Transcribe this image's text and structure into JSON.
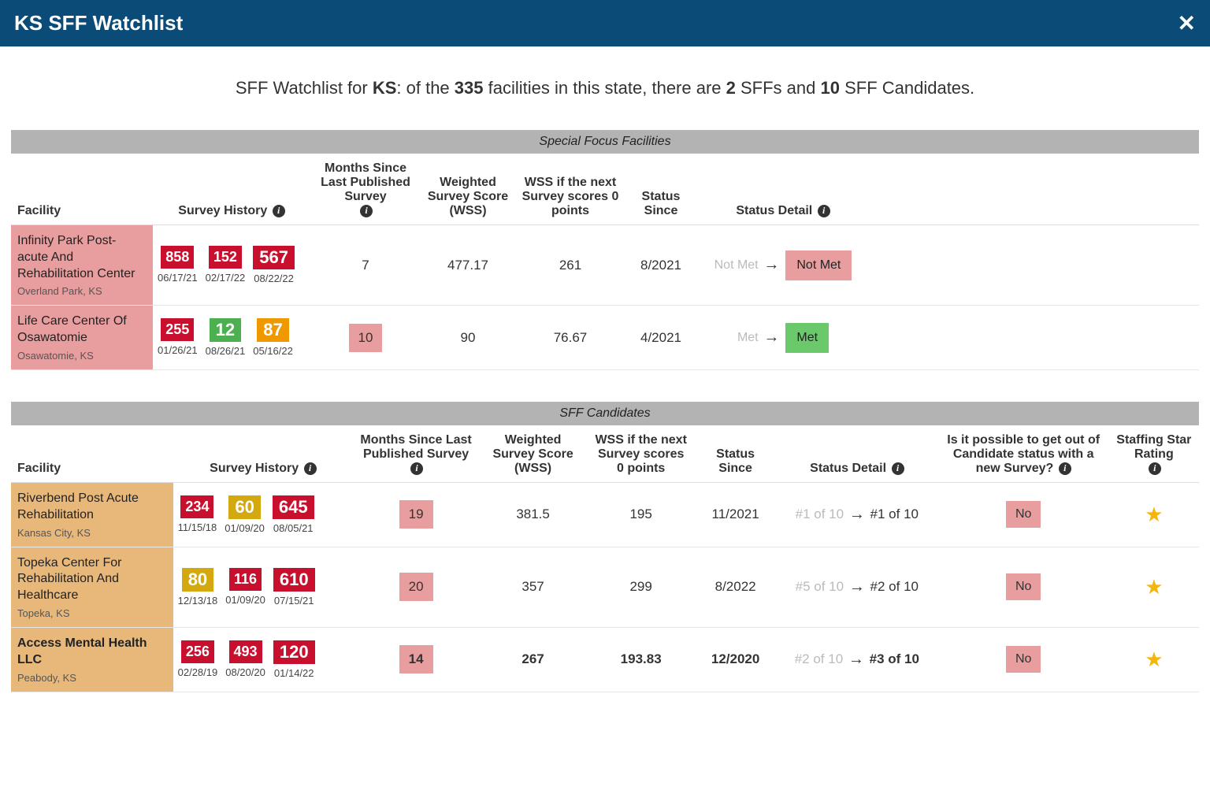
{
  "header": {
    "title": "KS SFF Watchlist"
  },
  "summary": {
    "prefix": "SFF Watchlist for ",
    "state": "KS",
    "mid1": ": of the ",
    "total": "335",
    "mid2": " facilities in this state, there are ",
    "sff_count": "2",
    "mid3": " SFFs and ",
    "cand_count": "10",
    "suffix": " SFF Candidates."
  },
  "sections": {
    "sff_header": "Special Focus Facilities",
    "cand_header": "SFF Candidates"
  },
  "columns": {
    "facility": "Facility",
    "survey_history": "Survey History",
    "months_since": "Months Since Last Published Survey",
    "wss": "Weighted Survey Score (WSS)",
    "wss_next": "WSS if the next Survey scores 0 points",
    "status_since": "Status Since",
    "status_detail": "Status Detail",
    "get_out": "Is it possible to get out of Candidate status with a new Survey?",
    "staffing": "Staffing Star Rating"
  },
  "colors": {
    "red": "#c8102e",
    "green": "#4caf50",
    "orange": "#f09800",
    "yellow": "#d4a80f",
    "facility_sff": "#e89e9e",
    "facility_cand": "#e8b87a",
    "header_bar": "#0a4b78",
    "section_bg": "#b3b3b3"
  },
  "sff_rows": [
    {
      "name": "Infinity Park Post-acute And Rehabilitation Center",
      "location": "Overland Park, KS",
      "surveys": [
        {
          "score": "858",
          "date": "06/17/21",
          "color": "red",
          "size": "med"
        },
        {
          "score": "152",
          "date": "02/17/22",
          "color": "red",
          "size": "med"
        },
        {
          "score": "567",
          "date": "08/22/22",
          "color": "red",
          "size": "large"
        }
      ],
      "months_since": "7",
      "months_badge": false,
      "wss": "477.17",
      "wss_next": "261",
      "status_since": "8/2021",
      "status_prev": "Not Met",
      "status_curr": "Not Met",
      "status_curr_class": "notmet"
    },
    {
      "name": "Life Care Center Of Osawatomie",
      "location": "Osawatomie, KS",
      "surveys": [
        {
          "score": "255",
          "date": "01/26/21",
          "color": "red",
          "size": "med"
        },
        {
          "score": "12",
          "date": "08/26/21",
          "color": "green",
          "size": "large"
        },
        {
          "score": "87",
          "date": "05/16/22",
          "color": "orange",
          "size": "large"
        }
      ],
      "months_since": "10",
      "months_badge": true,
      "wss": "90",
      "wss_next": "76.67",
      "status_since": "4/2021",
      "status_prev": "Met",
      "status_curr": "Met",
      "status_curr_class": "met"
    }
  ],
  "cand_rows": [
    {
      "name": "Riverbend Post Acute Rehabilitation",
      "location": "Kansas City, KS",
      "bold": false,
      "surveys": [
        {
          "score": "234",
          "date": "11/15/18",
          "color": "red",
          "size": "med"
        },
        {
          "score": "60",
          "date": "01/09/20",
          "color": "yellow",
          "size": "large"
        },
        {
          "score": "645",
          "date": "08/05/21",
          "color": "red",
          "size": "large"
        }
      ],
      "months_since": "19",
      "wss": "381.5",
      "wss_next": "195",
      "status_since": "11/2021",
      "rank_prev": "#1 of 10",
      "rank_curr": "#1 of 10",
      "get_out": "No",
      "stars": 1
    },
    {
      "name": "Topeka Center For Rehabilitation And Healthcare",
      "location": "Topeka, KS",
      "bold": false,
      "surveys": [
        {
          "score": "80",
          "date": "12/13/18",
          "color": "yellow",
          "size": "large"
        },
        {
          "score": "116",
          "date": "01/09/20",
          "color": "red",
          "size": "med"
        },
        {
          "score": "610",
          "date": "07/15/21",
          "color": "red",
          "size": "large"
        }
      ],
      "months_since": "20",
      "wss": "357",
      "wss_next": "299",
      "status_since": "8/2022",
      "rank_prev": "#5 of 10",
      "rank_curr": "#2 of 10",
      "get_out": "No",
      "stars": 1
    },
    {
      "name": "Access Mental Health LLC",
      "location": "Peabody, KS",
      "bold": true,
      "surveys": [
        {
          "score": "256",
          "date": "02/28/19",
          "color": "red",
          "size": "med"
        },
        {
          "score": "493",
          "date": "08/20/20",
          "color": "red",
          "size": "med"
        },
        {
          "score": "120",
          "date": "01/14/22",
          "color": "red",
          "size": "large"
        }
      ],
      "months_since": "14",
      "wss": "267",
      "wss_next": "193.83",
      "status_since": "12/2020",
      "rank_prev": "#2 of 10",
      "rank_curr": "#3 of 10",
      "get_out": "No",
      "stars": 1
    }
  ]
}
